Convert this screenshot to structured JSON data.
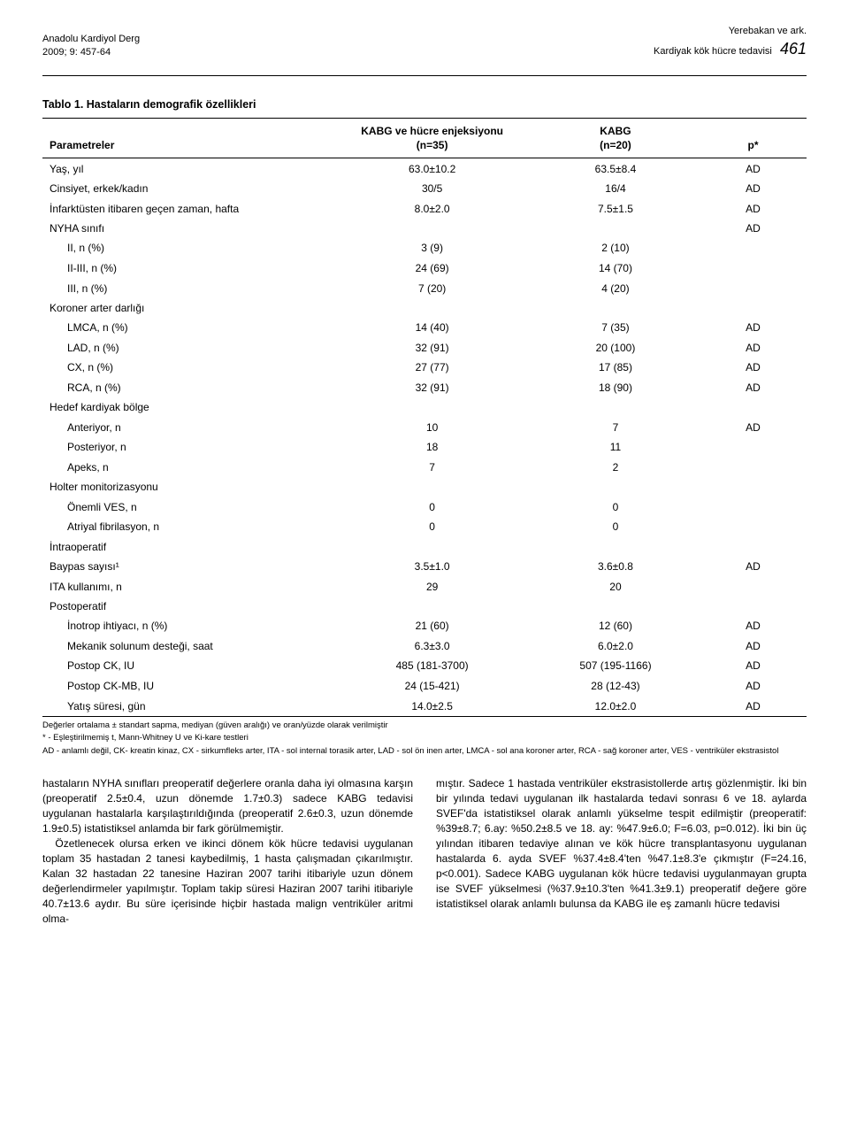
{
  "header": {
    "journal": "Anadolu Kardiyol Derg",
    "issue": "2009; 9: 457-64",
    "authors": "Yerebakan ve ark.",
    "title": "Kardiyak kök hücre tedavisi",
    "page": "461"
  },
  "table": {
    "caption": "Tablo 1. Hastaların demografik özellikleri",
    "headers": {
      "param": "Parametreler",
      "g1a": "KABG ve hücre enjeksiyonu",
      "g1b": "(n=35)",
      "g2a": "KABG",
      "g2b": "(n=20)",
      "p": "p*"
    },
    "rows": [
      {
        "label": "Yaş, yıl",
        "v1": "63.0±10.2",
        "v2": "63.5±8.4",
        "p": "AD"
      },
      {
        "label": "Cinsiyet, erkek/kadın",
        "v1": "30/5",
        "v2": "16/4",
        "p": "AD"
      },
      {
        "label": "İnfarktüsten itibaren geçen zaman, hafta",
        "v1": "8.0±2.0",
        "v2": "7.5±1.5",
        "p": "AD"
      },
      {
        "label": "NYHA sınıfı",
        "v1": "",
        "v2": "",
        "p": "AD",
        "section": true
      },
      {
        "label": "II, n (%)",
        "v1": "3 (9)",
        "v2": "2 (10)",
        "p": "",
        "indent": true
      },
      {
        "label": "II-III, n (%)",
        "v1": "24 (69)",
        "v2": "14 (70)",
        "p": "",
        "indent": true
      },
      {
        "label": "III, n (%)",
        "v1": "7 (20)",
        "v2": "4 (20)",
        "p": "",
        "indent": true
      },
      {
        "label": "Koroner arter darlığı",
        "v1": "",
        "v2": "",
        "p": "",
        "section": true
      },
      {
        "label": "LMCA, n (%)",
        "v1": "14 (40)",
        "v2": "7 (35)",
        "p": "AD",
        "indent": true
      },
      {
        "label": "LAD, n (%)",
        "v1": "32 (91)",
        "v2": "20 (100)",
        "p": "AD",
        "indent": true
      },
      {
        "label": "CX, n (%)",
        "v1": "27 (77)",
        "v2": "17 (85)",
        "p": "AD",
        "indent": true
      },
      {
        "label": "RCA, n (%)",
        "v1": "32 (91)",
        "v2": "18 (90)",
        "p": "AD",
        "indent": true
      },
      {
        "label": "Hedef kardiyak bölge",
        "v1": "",
        "v2": "",
        "p": "",
        "section": true
      },
      {
        "label": "Anteriyor, n",
        "v1": "10",
        "v2": "7",
        "p": "AD",
        "indent": true
      },
      {
        "label": "Posteriyor, n",
        "v1": "18",
        "v2": "11",
        "p": "",
        "indent": true
      },
      {
        "label": "Apeks, n",
        "v1": "7",
        "v2": "2",
        "p": "",
        "indent": true
      },
      {
        "label": "Holter monitorizasyonu",
        "v1": "",
        "v2": "",
        "p": "",
        "section": true
      },
      {
        "label": "Önemli VES, n",
        "v1": "0",
        "v2": "0",
        "p": "",
        "indent": true
      },
      {
        "label": "Atriyal fibrilasyon, n",
        "v1": "0",
        "v2": "0",
        "p": "",
        "indent": true
      },
      {
        "label": "İntraoperatif",
        "v1": "",
        "v2": "",
        "p": "",
        "section": true
      },
      {
        "label": "Baypas sayısı¹",
        "v1": "3.5±1.0",
        "v2": "3.6±0.8",
        "p": "AD"
      },
      {
        "label": "ITA kullanımı, n",
        "v1": "29",
        "v2": "20",
        "p": ""
      },
      {
        "label": "Postoperatif",
        "v1": "",
        "v2": "",
        "p": "",
        "section": true
      },
      {
        "label": "İnotrop ihtiyacı, n (%)",
        "v1": "21 (60)",
        "v2": "12 (60)",
        "p": "AD",
        "indent": true
      },
      {
        "label": "Mekanik solunum desteği, saat",
        "v1": "6.3±3.0",
        "v2": "6.0±2.0",
        "p": "AD",
        "indent": true
      },
      {
        "label": "Postop CK, IU",
        "v1": "485 (181-3700)",
        "v2": "507 (195-1166)",
        "p": "AD",
        "indent": true
      },
      {
        "label": "Postop CK-MB, IU",
        "v1": "24 (15-421)",
        "v2": "28 (12-43)",
        "p": "AD",
        "indent": true
      },
      {
        "label": "Yatış süresi, gün",
        "v1": "14.0±2.5",
        "v2": "12.0±2.0",
        "p": "AD",
        "indent": true
      }
    ],
    "footnotes": [
      "Değerler ortalama ± standart sapma, mediyan (güven aralığı) ve oran/yüzde olarak verilmiştir",
      "* - Eşleştirilmemiş t, Mann-Whitney U ve Ki-kare testleri",
      "AD - anlamlı değil, CK- kreatin kinaz, CX - sirkumfleks arter, ITA - sol internal torasik arter, LAD - sol ön inen arter, LMCA - sol ana koroner arter, RCA - sağ koroner arter, VES - ventriküler ekstrasistol"
    ]
  },
  "paragraphs": [
    "hastaların NYHA sınıfları preoperatif değerlere oranla daha iyi olmasına karşın (preoperatif 2.5±0.4, uzun dönemde 1.7±0.3) sadece KABG tedavisi uygulanan hastalarla karşılaştırıldığında (preoperatif 2.6±0.3, uzun dönemde 1.9±0.5) istatistiksel anlamda bir fark görülmemiştir.",
    "Özetlenecek olursa erken ve ikinci dönem kök hücre tedavisi uygulanan toplam 35 hastadan 2 tanesi kaybedilmiş, 1 hasta çalışmadan çıkarılmıştır. Kalan 32 hastadan 22 tanesine Haziran 2007 tarihi itibariyle uzun dönem değerlendirmeler yapılmıştır. Toplam takip süresi Haziran 2007 tarihi itibariyle 40.7±13.6 aydır. Bu süre içerisinde hiçbir hastada malign ventriküler aritmi olma-",
    "mıştır. Sadece 1 hastada ventriküler ekstrasistollerde artış gözlenmiştir. İki bin bir yılında tedavi uygulanan ilk hastalarda tedavi sonrası 6 ve 18. aylarda SVEF'da istatistiksel olarak anlamlı yükselme tespit edilmiştir (preoperatif: %39±8.7; 6.ay: %50.2±8.5 ve 18. ay: %47.9±6.0; F=6.03, p=0.012). İki bin üç yılından itibaren tedaviye alınan ve kök hücre transplantasyonu uygulanan hastalarda 6. ayda SVEF %37.4±8.4'ten %47.1±8.3'e çıkmıştır (F=24.16, p<0.001). Sadece KABG uygulanan kök hücre tedavisi uygulanmayan grupta ise SVEF yükselmesi (%37.9±10.3'ten %41.3±9.1) preoperatif değere göre istatistiksel olarak anlamlı bulunsa da KABG ile eş zamanlı hücre tedavisi"
  ]
}
